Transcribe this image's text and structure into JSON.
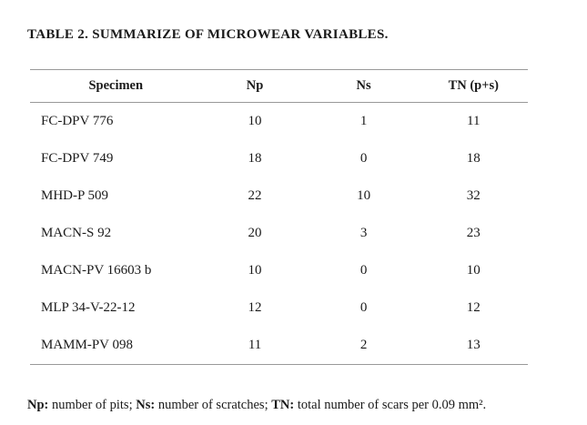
{
  "title": "TABLE 2. SUMMARIZE OF MICROWEAR VARIABLES.",
  "table": {
    "columns": [
      "Specimen",
      "Np",
      "Ns",
      "TN (p+s)"
    ],
    "rows": [
      [
        "FC-DPV 776",
        "10",
        "1",
        "11"
      ],
      [
        "FC-DPV 749",
        "18",
        "0",
        "18"
      ],
      [
        "MHD-P 509",
        "22",
        "10",
        "32"
      ],
      [
        "MACN-S 92",
        "20",
        "3",
        "23"
      ],
      [
        "MACN-PV 16603 b",
        "10",
        "0",
        "10"
      ],
      [
        "MLP 34-V-22-12",
        "12",
        "0",
        "12"
      ],
      [
        "MAMM-PV 098",
        "11",
        "2",
        "13"
      ]
    ]
  },
  "footnote": {
    "segments": [
      {
        "label": "Np:",
        "text": " number of pits; "
      },
      {
        "label": "Ns:",
        "text": " number of scratches; "
      },
      {
        "label": "TN:",
        "text": " total number of scars per 0.09 mm²."
      }
    ]
  },
  "colors": {
    "rule": "#999999",
    "text": "#1a1a1a",
    "background": "#ffffff"
  }
}
